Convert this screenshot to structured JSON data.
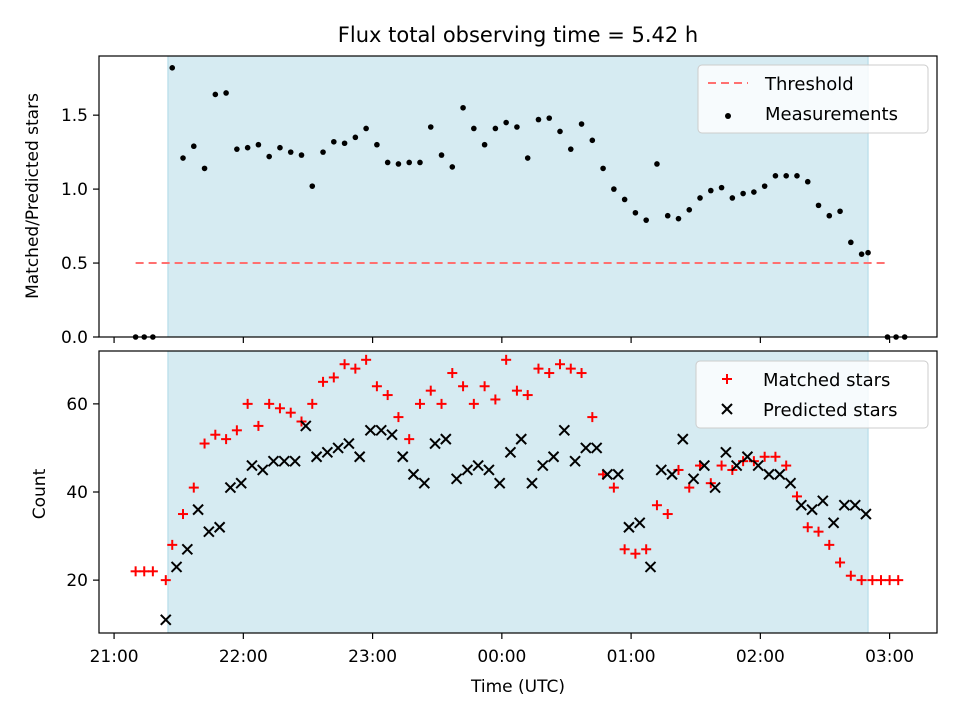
{
  "colors": {
    "band": "#add8e6",
    "threshold": "#ff7070",
    "measurements": "#000000",
    "matched": "#ff0000",
    "predicted": "#000000"
  },
  "chart_data": [
    {
      "type": "scatter",
      "title": "Flux total observing time = 5.42 h",
      "xlabel": "",
      "ylabel": "Matched/Predicted stars",
      "xlim": [
        "20:53",
        "03:22"
      ],
      "ylim": [
        0,
        1.9
      ],
      "yticks": [
        "0.0",
        "0.5",
        "1.0",
        "1.5"
      ],
      "xticks": [
        "21:00",
        "22:00",
        "23:00",
        "00:00",
        "01:00",
        "02:00",
        "03:00"
      ],
      "shaded_span": [
        "21:25",
        "02:50"
      ],
      "legend": {
        "position": "top-right",
        "items": [
          "Threshold",
          "Measurements"
        ]
      },
      "threshold": {
        "name": "Threshold",
        "value": 0.5,
        "x_range": [
          "21:10",
          "03:00"
        ]
      },
      "series": [
        {
          "name": "Measurements",
          "points": [
            [
              "21:10",
              0.0
            ],
            [
              "21:14",
              0.0
            ],
            [
              "21:18",
              0.0
            ],
            [
              "21:27",
              1.82
            ],
            [
              "21:32",
              1.21
            ],
            [
              "21:37",
              1.29
            ],
            [
              "21:42",
              1.14
            ],
            [
              "21:47",
              1.64
            ],
            [
              "21:52",
              1.65
            ],
            [
              "21:57",
              1.27
            ],
            [
              "22:02",
              1.28
            ],
            [
              "22:07",
              1.3
            ],
            [
              "22:12",
              1.22
            ],
            [
              "22:17",
              1.28
            ],
            [
              "22:22",
              1.25
            ],
            [
              "22:27",
              1.23
            ],
            [
              "22:32",
              1.02
            ],
            [
              "22:37",
              1.25
            ],
            [
              "22:42",
              1.32
            ],
            [
              "22:47",
              1.31
            ],
            [
              "22:52",
              1.35
            ],
            [
              "22:57",
              1.41
            ],
            [
              "23:02",
              1.3
            ],
            [
              "23:07",
              1.18
            ],
            [
              "23:12",
              1.17
            ],
            [
              "23:17",
              1.18
            ],
            [
              "23:22",
              1.18
            ],
            [
              "23:27",
              1.42
            ],
            [
              "23:32",
              1.23
            ],
            [
              "23:37",
              1.15
            ],
            [
              "23:42",
              1.55
            ],
            [
              "23:47",
              1.41
            ],
            [
              "23:52",
              1.3
            ],
            [
              "23:57",
              1.41
            ],
            [
              "00:02",
              1.45
            ],
            [
              "00:07",
              1.42
            ],
            [
              "00:12",
              1.21
            ],
            [
              "00:17",
              1.47
            ],
            [
              "00:22",
              1.48
            ],
            [
              "00:27",
              1.39
            ],
            [
              "00:32",
              1.27
            ],
            [
              "00:37",
              1.44
            ],
            [
              "00:42",
              1.33
            ],
            [
              "00:47",
              1.14
            ],
            [
              "00:52",
              1.0
            ],
            [
              "00:57",
              0.93
            ],
            [
              "01:02",
              0.84
            ],
            [
              "01:07",
              0.79
            ],
            [
              "01:12",
              1.17
            ],
            [
              "01:17",
              0.82
            ],
            [
              "01:22",
              0.8
            ],
            [
              "01:27",
              0.86
            ],
            [
              "01:32",
              0.94
            ],
            [
              "01:37",
              0.99
            ],
            [
              "01:42",
              1.01
            ],
            [
              "01:47",
              0.94
            ],
            [
              "01:52",
              0.97
            ],
            [
              "01:57",
              0.98
            ],
            [
              "02:02",
              1.02
            ],
            [
              "02:07",
              1.09
            ],
            [
              "02:12",
              1.09
            ],
            [
              "02:17",
              1.09
            ],
            [
              "02:22",
              1.05
            ],
            [
              "02:27",
              0.89
            ],
            [
              "02:32",
              0.82
            ],
            [
              "02:37",
              0.85
            ],
            [
              "02:42",
              0.64
            ],
            [
              "02:47",
              0.56
            ],
            [
              "02:50",
              0.57
            ],
            [
              "02:59",
              0.0
            ],
            [
              "03:03",
              0.0
            ],
            [
              "03:07",
              0.0
            ]
          ]
        }
      ]
    },
    {
      "type": "scatter",
      "title": "",
      "xlabel": "Time (UTC)",
      "ylabel": "Count",
      "xlim": [
        "20:53",
        "03:22"
      ],
      "ylim": [
        8,
        72
      ],
      "yticks": [
        "20",
        "40",
        "60"
      ],
      "xticks": [
        "21:00",
        "22:00",
        "23:00",
        "00:00",
        "01:00",
        "02:00",
        "03:00"
      ],
      "shaded_span": [
        "21:25",
        "02:50"
      ],
      "legend": {
        "position": "top-right",
        "items": [
          "Matched stars",
          "Predicted stars"
        ]
      },
      "series": [
        {
          "name": "Matched stars",
          "marker": "plus",
          "points": [
            [
              "21:10",
              22
            ],
            [
              "21:14",
              22
            ],
            [
              "21:18",
              22
            ],
            [
              "21:24",
              20
            ],
            [
              "21:27",
              28
            ],
            [
              "21:32",
              35
            ],
            [
              "21:37",
              41
            ],
            [
              "21:42",
              51
            ],
            [
              "21:47",
              53
            ],
            [
              "21:52",
              52
            ],
            [
              "21:57",
              54
            ],
            [
              "22:02",
              60
            ],
            [
              "22:07",
              55
            ],
            [
              "22:12",
              60
            ],
            [
              "22:17",
              59
            ],
            [
              "22:22",
              58
            ],
            [
              "22:27",
              56
            ],
            [
              "22:32",
              60
            ],
            [
              "22:37",
              65
            ],
            [
              "22:42",
              66
            ],
            [
              "22:47",
              69
            ],
            [
              "22:52",
              68
            ],
            [
              "22:57",
              70
            ],
            [
              "23:02",
              64
            ],
            [
              "23:07",
              62
            ],
            [
              "23:12",
              57
            ],
            [
              "23:17",
              52
            ],
            [
              "23:22",
              60
            ],
            [
              "23:27",
              63
            ],
            [
              "23:32",
              60
            ],
            [
              "23:37",
              67
            ],
            [
              "23:42",
              64
            ],
            [
              "23:47",
              60
            ],
            [
              "23:52",
              64
            ],
            [
              "23:57",
              61
            ],
            [
              "00:02",
              70
            ],
            [
              "00:07",
              63
            ],
            [
              "00:12",
              62
            ],
            [
              "00:17",
              68
            ],
            [
              "00:22",
              67
            ],
            [
              "00:27",
              69
            ],
            [
              "00:32",
              68
            ],
            [
              "00:37",
              67
            ],
            [
              "00:42",
              57
            ],
            [
              "00:47",
              44
            ],
            [
              "00:52",
              41
            ],
            [
              "00:57",
              27
            ],
            [
              "01:02",
              26
            ],
            [
              "01:07",
              27
            ],
            [
              "01:12",
              37
            ],
            [
              "01:17",
              35
            ],
            [
              "01:22",
              45
            ],
            [
              "01:27",
              41
            ],
            [
              "01:32",
              46
            ],
            [
              "01:37",
              42
            ],
            [
              "01:42",
              46
            ],
            [
              "01:47",
              45
            ],
            [
              "01:52",
              47
            ],
            [
              "01:57",
              47
            ],
            [
              "02:02",
              48
            ],
            [
              "02:07",
              48
            ],
            [
              "02:12",
              46
            ],
            [
              "02:17",
              39
            ],
            [
              "02:22",
              32
            ],
            [
              "02:27",
              31
            ],
            [
              "02:32",
              28
            ],
            [
              "02:37",
              24
            ],
            [
              "02:42",
              21
            ],
            [
              "02:47",
              20
            ],
            [
              "02:52",
              20
            ],
            [
              "02:56",
              20
            ],
            [
              "03:00",
              20
            ],
            [
              "03:04",
              20
            ]
          ]
        },
        {
          "name": "Predicted stars",
          "marker": "x",
          "points": [
            [
              "21:24",
              11
            ],
            [
              "21:29",
              23
            ],
            [
              "21:34",
              27
            ],
            [
              "21:39",
              36
            ],
            [
              "21:44",
              31
            ],
            [
              "21:49",
              32
            ],
            [
              "21:54",
              41
            ],
            [
              "21:59",
              42
            ],
            [
              "22:04",
              46
            ],
            [
              "22:09",
              45
            ],
            [
              "22:14",
              47
            ],
            [
              "22:19",
              47
            ],
            [
              "22:24",
              47
            ],
            [
              "22:29",
              55
            ],
            [
              "22:34",
              48
            ],
            [
              "22:39",
              49
            ],
            [
              "22:44",
              50
            ],
            [
              "22:49",
              51
            ],
            [
              "22:54",
              48
            ],
            [
              "22:59",
              54
            ],
            [
              "23:04",
              54
            ],
            [
              "23:09",
              53
            ],
            [
              "23:14",
              48
            ],
            [
              "23:19",
              44
            ],
            [
              "23:24",
              42
            ],
            [
              "23:29",
              51
            ],
            [
              "23:34",
              52
            ],
            [
              "23:39",
              43
            ],
            [
              "23:44",
              45
            ],
            [
              "23:49",
              46
            ],
            [
              "23:54",
              45
            ],
            [
              "23:59",
              42
            ],
            [
              "00:04",
              49
            ],
            [
              "00:09",
              52
            ],
            [
              "00:14",
              42
            ],
            [
              "00:19",
              46
            ],
            [
              "00:24",
              48
            ],
            [
              "00:29",
              54
            ],
            [
              "00:34",
              47
            ],
            [
              "00:39",
              50
            ],
            [
              "00:44",
              50
            ],
            [
              "00:49",
              44
            ],
            [
              "00:54",
              44
            ],
            [
              "00:59",
              32
            ],
            [
              "01:04",
              33
            ],
            [
              "01:09",
              23
            ],
            [
              "01:14",
              45
            ],
            [
              "01:19",
              44
            ],
            [
              "01:24",
              52
            ],
            [
              "01:29",
              43
            ],
            [
              "01:34",
              46
            ],
            [
              "01:39",
              41
            ],
            [
              "01:44",
              49
            ],
            [
              "01:49",
              46
            ],
            [
              "01:54",
              48
            ],
            [
              "01:59",
              46
            ],
            [
              "02:04",
              44
            ],
            [
              "02:09",
              44
            ],
            [
              "02:14",
              42
            ],
            [
              "02:19",
              37
            ],
            [
              "02:24",
              36
            ],
            [
              "02:29",
              38
            ],
            [
              "02:34",
              33
            ],
            [
              "02:39",
              37
            ],
            [
              "02:44",
              37
            ],
            [
              "02:49",
              35
            ]
          ]
        }
      ]
    }
  ]
}
